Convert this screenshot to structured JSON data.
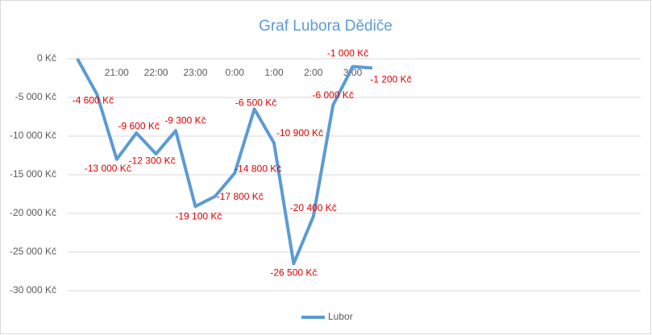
{
  "chart_data": {
    "type": "line",
    "title": "Graf Lubora Dědiče",
    "categories": [
      null,
      null,
      "21:00",
      null,
      "22:00",
      null,
      "23:00",
      null,
      "0:00",
      null,
      "1:00",
      null,
      "2:00",
      null,
      "3:00",
      null
    ],
    "series": [
      {
        "name": "Lubor",
        "color": "#5b9bd5",
        "values": [
          0,
          -4600,
          -13000,
          -9600,
          -12300,
          -9300,
          -19100,
          -17800,
          -14800,
          -6500,
          -10900,
          -26500,
          -20400,
          -6000,
          -1000,
          -1200
        ],
        "value_labels": [
          null,
          "-4 600 Kč",
          "-13 000 Kč",
          "-9 600 Kč",
          "-12 300 Kč",
          "-9 300 Kč",
          "-19 100 Kč",
          "-17 800 Kč",
          "-14 800 Kč",
          "-6 500 Kč",
          "-10 900 Kč",
          "-26 500 Kč",
          "-20 400 Kč",
          "-6 000 Kč",
          "-1 000 Kč",
          "-1 200 Kč"
        ]
      }
    ],
    "ylim": [
      -30000,
      0
    ],
    "yticks": [
      {
        "value": -30000,
        "label": "-30 000 Kč"
      },
      {
        "value": -25000,
        "label": "-25 000 Kč"
      },
      {
        "value": -20000,
        "label": "-20 000 Kč"
      },
      {
        "value": -15000,
        "label": "-15 000 Kč"
      },
      {
        "value": -10000,
        "label": "-10 000 Kč"
      },
      {
        "value": -5000,
        "label": "-5 000 Kč"
      },
      {
        "value": 0,
        "label": "0 Kč"
      }
    ],
    "grid": true,
    "legend": "bottom"
  }
}
